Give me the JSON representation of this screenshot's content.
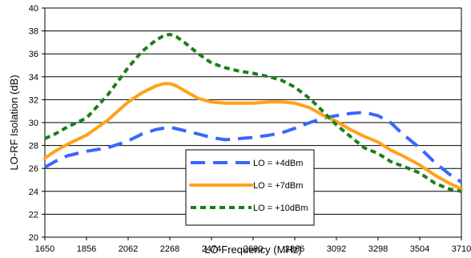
{
  "chart_data": {
    "type": "line",
    "xlabel": "LO Frequency (MHz)",
    "ylabel": "LO-RF Isolation (dB)",
    "xlim": [
      1650,
      3710
    ],
    "ylim": [
      20,
      40
    ],
    "xticks": [
      1650,
      1856,
      2062,
      2268,
      2474,
      2680,
      2886,
      3092,
      3298,
      3504,
      3710
    ],
    "yticks": [
      20,
      22,
      24,
      26,
      28,
      30,
      32,
      34,
      36,
      38,
      40
    ],
    "grid": true,
    "legend_position": "bottom-center",
    "series": [
      {
        "name": "LO = +4dBm",
        "color": "#3a66ff",
        "dash": "long-dash",
        "x": [
          1650,
          1700,
          1760,
          1856,
          1960,
          2062,
          2130,
          2200,
          2268,
          2340,
          2410,
          2474,
          2540,
          2610,
          2680,
          2760,
          2820,
          2886,
          2960,
          3030,
          3092,
          3160,
          3230,
          3298,
          3360,
          3420,
          3504,
          3580,
          3650,
          3710
        ],
        "y": [
          26.1,
          26.6,
          27.1,
          27.5,
          27.8,
          28.4,
          29.0,
          29.4,
          29.6,
          29.3,
          29.0,
          28.7,
          28.5,
          28.6,
          28.7,
          28.9,
          29.1,
          29.5,
          30.0,
          30.4,
          30.6,
          30.8,
          30.9,
          30.6,
          30.0,
          29.0,
          27.8,
          26.5,
          25.5,
          24.8
        ]
      },
      {
        "name": "LO = +7dBm",
        "color": "#ffa21a",
        "dash": "solid",
        "x": [
          1650,
          1700,
          1760,
          1856,
          1960,
          2062,
          2130,
          2200,
          2240,
          2268,
          2300,
          2340,
          2410,
          2474,
          2540,
          2610,
          2680,
          2760,
          2820,
          2886,
          2960,
          3030,
          3092,
          3160,
          3230,
          3298,
          3360,
          3420,
          3504,
          3580,
          3650,
          3710
        ],
        "y": [
          26.9,
          27.5,
          28.1,
          28.9,
          30.2,
          31.8,
          32.6,
          33.2,
          33.4,
          33.4,
          33.2,
          32.8,
          32.1,
          31.8,
          31.7,
          31.7,
          31.7,
          31.8,
          31.8,
          31.7,
          31.3,
          30.6,
          30.1,
          29.4,
          28.8,
          28.3,
          27.6,
          27.1,
          26.3,
          25.4,
          24.7,
          24.2
        ]
      },
      {
        "name": "LO = +10dBm",
        "color": "#1a7f1a",
        "dash": "dot",
        "x": [
          1650,
          1700,
          1760,
          1856,
          1960,
          2062,
          2130,
          2200,
          2240,
          2268,
          2300,
          2340,
          2410,
          2474,
          2540,
          2610,
          2680,
          2760,
          2820,
          2886,
          2960,
          3030,
          3092,
          3160,
          3230,
          3298,
          3360,
          3420,
          3504,
          3580,
          3650,
          3710
        ],
        "y": [
          28.6,
          29.0,
          29.6,
          30.4,
          32.4,
          34.8,
          36.2,
          37.2,
          37.6,
          37.7,
          37.5,
          37.0,
          36.0,
          35.2,
          34.8,
          34.5,
          34.3,
          34.0,
          33.7,
          33.1,
          32.1,
          30.9,
          29.8,
          28.8,
          27.8,
          27.3,
          26.6,
          26.2,
          25.6,
          24.7,
          24.2,
          24.0
        ]
      }
    ]
  }
}
